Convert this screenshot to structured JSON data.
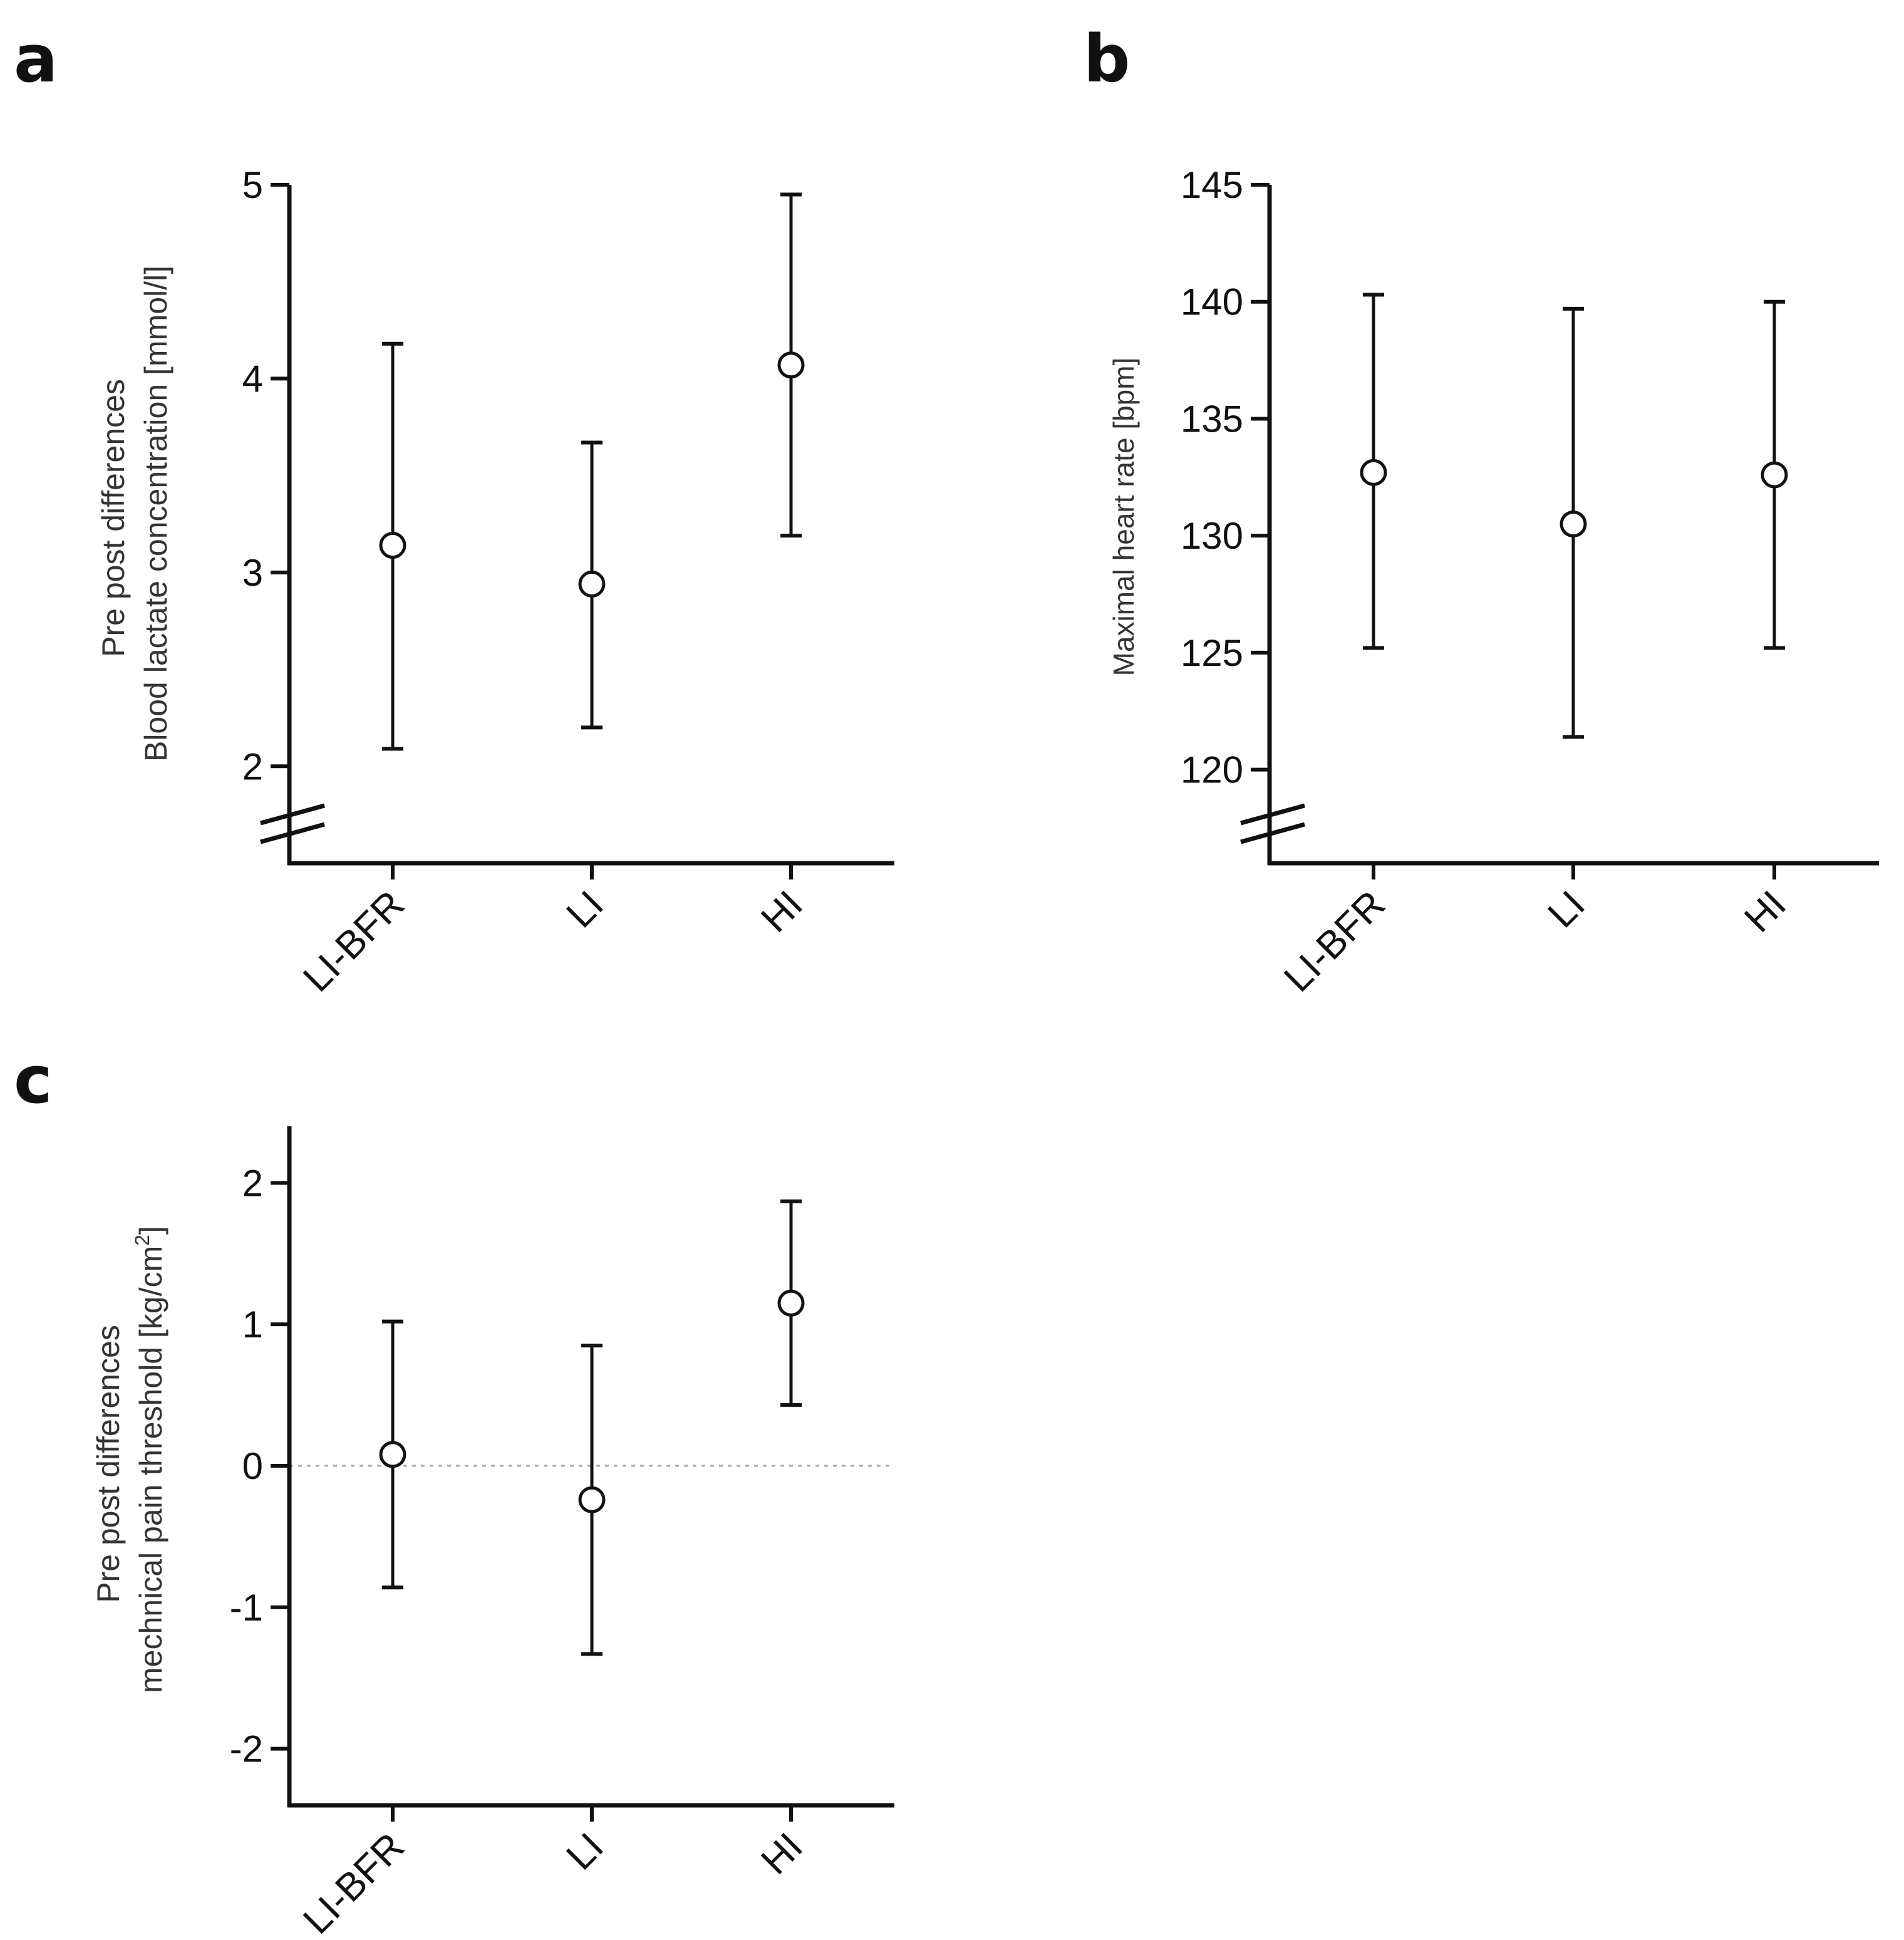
{
  "chart_data": [
    {
      "panel": "a",
      "type": "scatter",
      "categories": [
        "LI-BFR",
        "LI",
        "HI"
      ],
      "series": [
        {
          "name": "mean",
          "values": [
            3.14,
            2.94,
            4.07
          ],
          "ci_low": [
            2.09,
            2.2,
            3.19
          ],
          "ci_high": [
            4.18,
            3.67,
            4.95
          ]
        }
      ],
      "yticks": [
        2,
        3,
        4,
        5
      ],
      "ylim": [
        1.5,
        5
      ],
      "axis_break": true,
      "reference_line": null,
      "ylabel_lines": [
        "Pre post differences",
        "Blood lactate concentration [mmol/l]"
      ],
      "ylabel_sup": "",
      "ylabel_tail": "",
      "xlabel": "",
      "title": ""
    },
    {
      "panel": "b",
      "type": "scatter",
      "categories": [
        "LI-BFR",
        "LI",
        "HI"
      ],
      "series": [
        {
          "name": "mean",
          "values": [
            132.7,
            130.5,
            132.6
          ],
          "ci_low": [
            125.2,
            121.4,
            125.2
          ],
          "ci_high": [
            140.3,
            139.7,
            140.0
          ]
        }
      ],
      "yticks": [
        120,
        125,
        130,
        135,
        140,
        145
      ],
      "ylim": [
        116,
        145
      ],
      "axis_break": true,
      "reference_line": null,
      "ylabel_lines": [
        "Maximal heart rate  [bpm]"
      ],
      "ylabel_sup": "",
      "ylabel_tail": "",
      "xlabel": "",
      "title": ""
    },
    {
      "panel": "c",
      "type": "scatter",
      "categories": [
        "LI-BFR",
        "LI",
        "HI"
      ],
      "series": [
        {
          "name": "mean",
          "values": [
            0.08,
            -0.24,
            1.15
          ],
          "ci_low": [
            -0.86,
            -1.33,
            0.43
          ],
          "ci_high": [
            1.02,
            0.85,
            1.87
          ]
        }
      ],
      "yticks": [
        -2,
        -1,
        0,
        1,
        2
      ],
      "ylim": [
        -2.4,
        2.4
      ],
      "axis_break": false,
      "reference_line": 0,
      "ylabel_lines": [
        "Pre post differences",
        "mechnical pain threshold  [kg/cm"
      ],
      "ylabel_sup": "2",
      "ylabel_tail": "]",
      "xlabel": "",
      "title": ""
    }
  ],
  "style": {
    "ink": "#111111",
    "reference_line_color": "#aaaaaa"
  }
}
